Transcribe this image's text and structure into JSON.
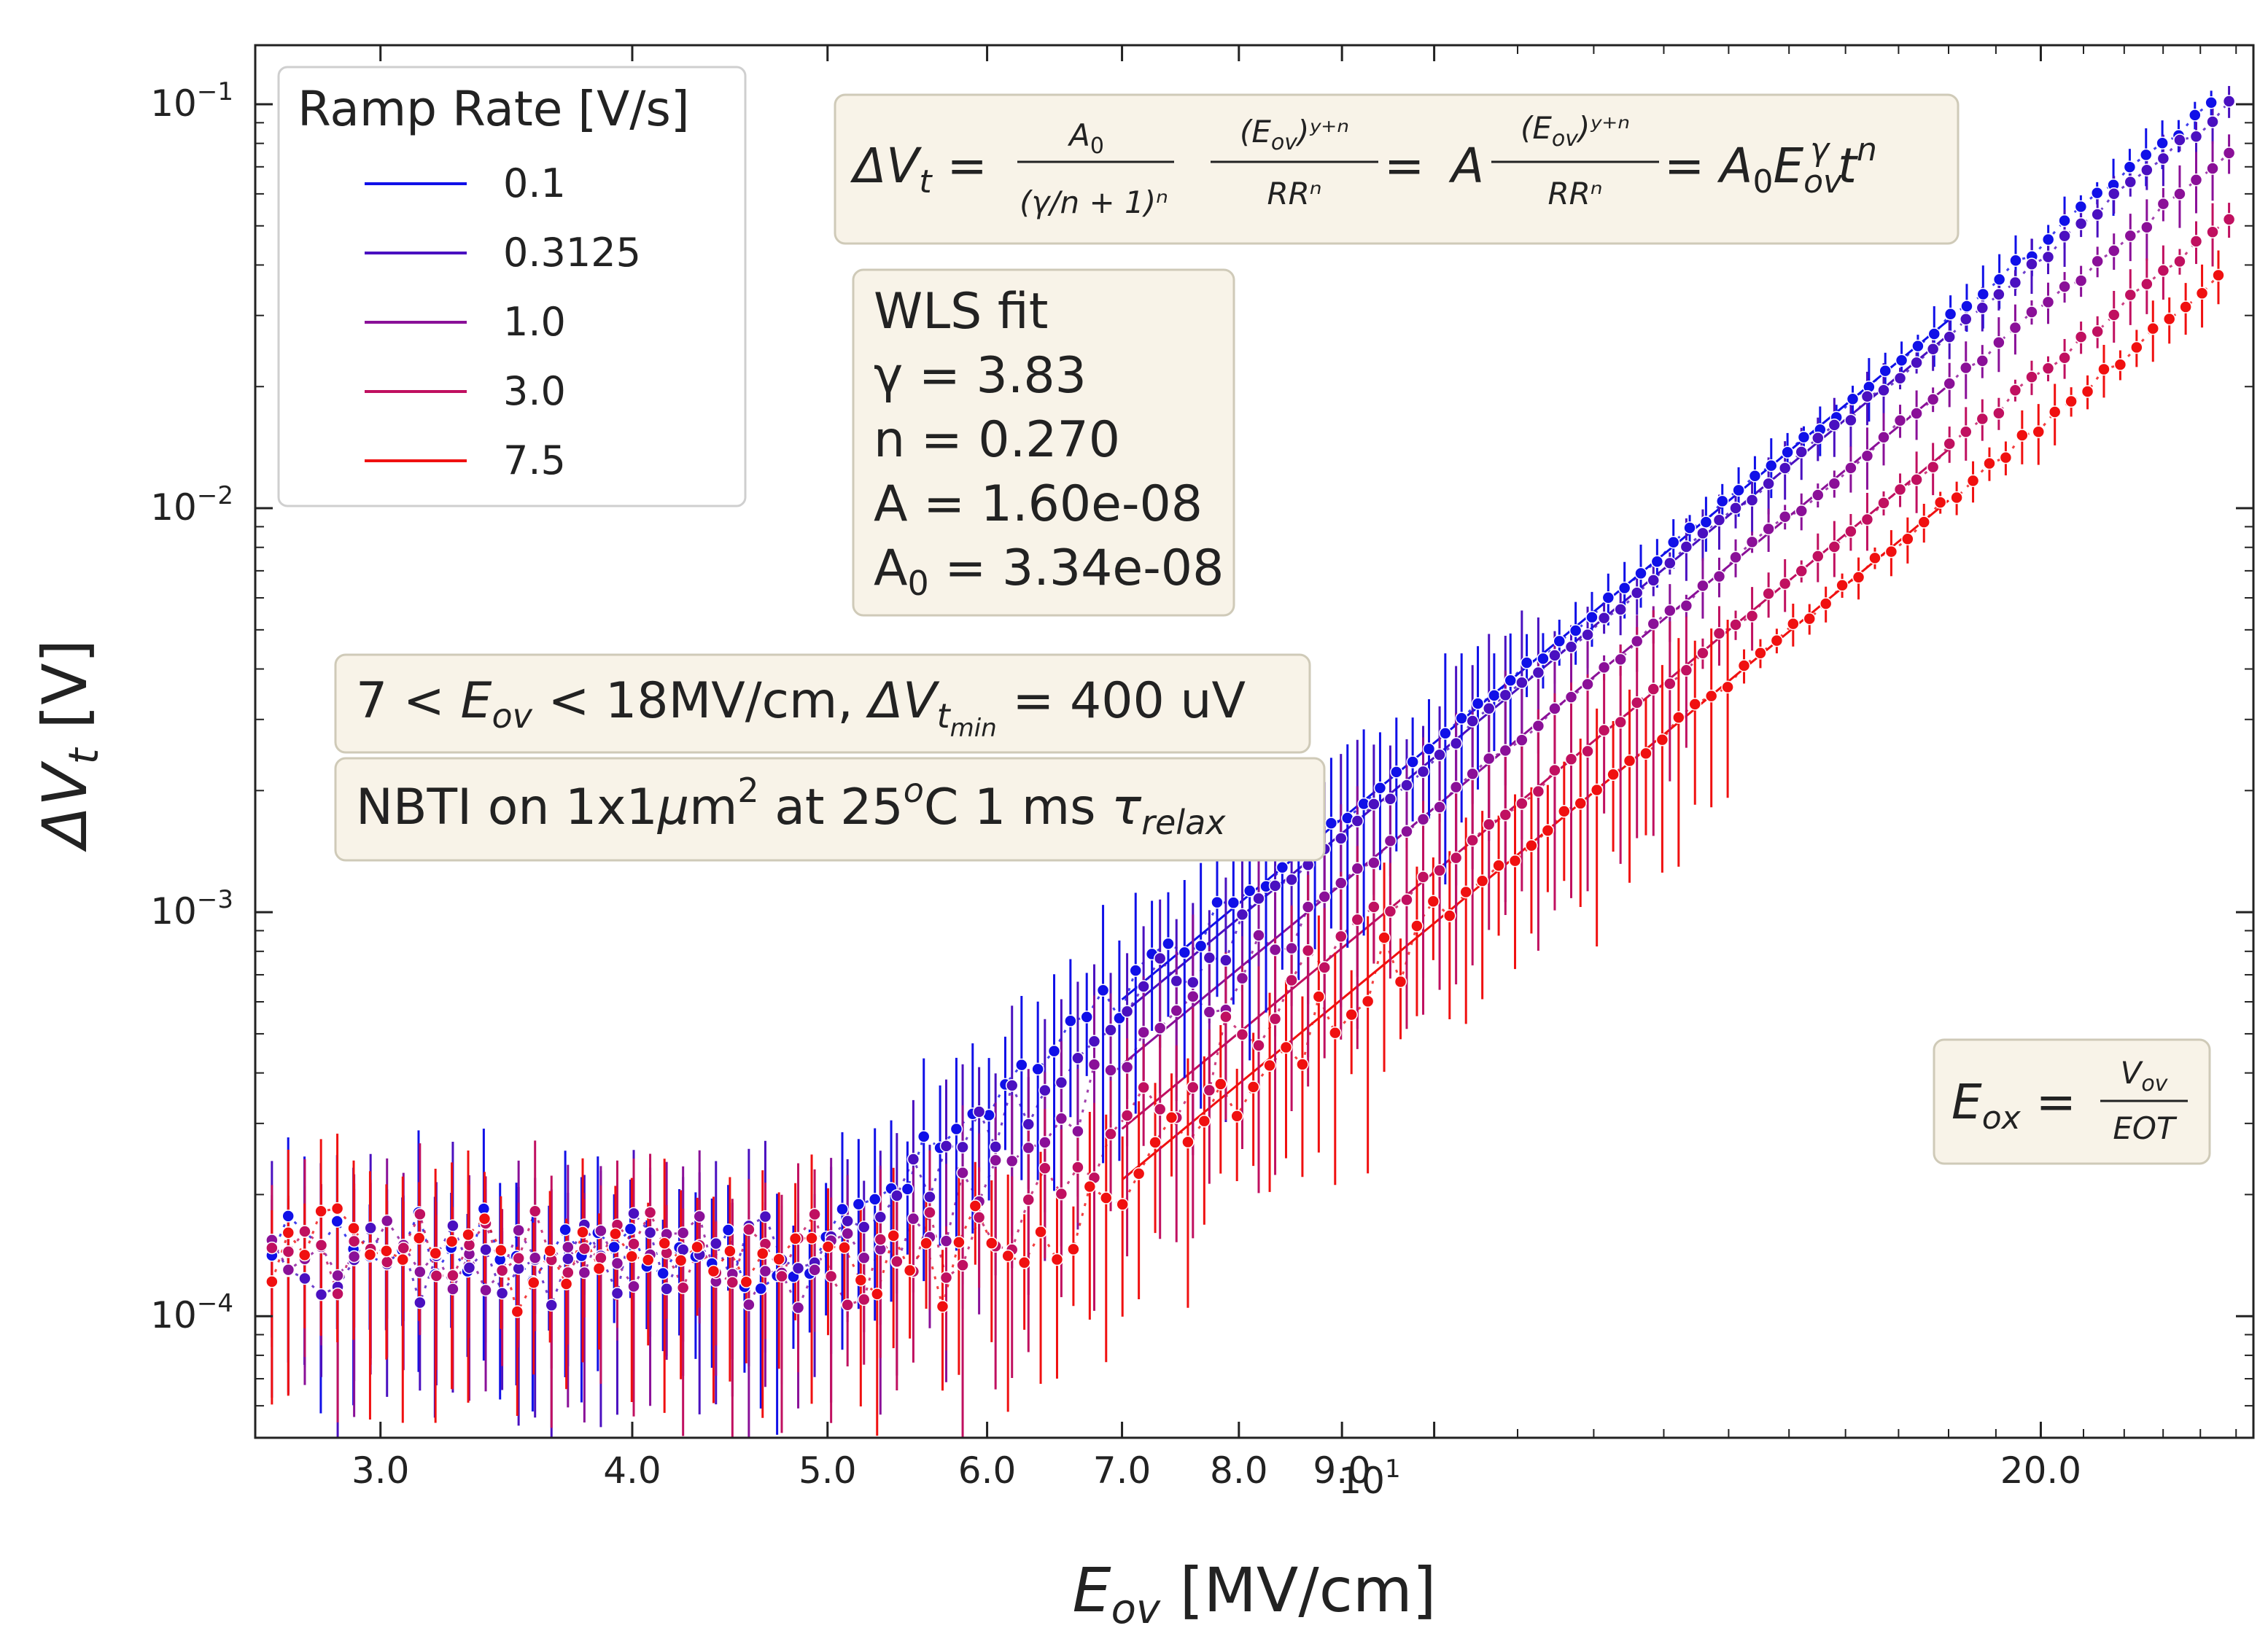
{
  "chart_data": {
    "type": "scatter",
    "xscale": "log",
    "yscale": "log",
    "xlim": [
      2.6,
      25.5
    ],
    "ylim": [
      5e-05,
      0.14
    ],
    "xlabel": "E_ov [MV/cm]",
    "ylabel": "ΔV_t [V]",
    "xlabel_parts": {
      "sym": "E",
      "sub": "ov",
      "unit": " [MV/cm]"
    },
    "ylabel_parts": {
      "sym": "ΔV",
      "sub": "t",
      "unit": " [V]"
    },
    "x_ticks": [
      {
        "value": 3.0,
        "label": "3.0"
      },
      {
        "value": 4.0,
        "label": "4.0"
      },
      {
        "value": 5.0,
        "label": "5.0"
      },
      {
        "value": 6.0,
        "label": "6.0"
      },
      {
        "value": 7.0,
        "label": "7.0"
      },
      {
        "value": 8.0,
        "label": "8.0"
      },
      {
        "value": 9.0,
        "label": "9.0"
      },
      {
        "value": 20.0,
        "label": "20.0"
      }
    ],
    "x_decade_tick": {
      "value": 10,
      "base": "10",
      "exp": "1"
    },
    "y_ticks": [
      {
        "value": 0.1,
        "base": "10",
        "exp": "−1"
      },
      {
        "value": 0.01,
        "base": "10",
        "exp": "−2"
      },
      {
        "value": 0.001,
        "base": "10",
        "exp": "−3"
      },
      {
        "value": 0.0001,
        "base": "10",
        "exp": "−4"
      }
    ],
    "legend": {
      "title": "Ramp Rate [V/s]",
      "position": "upper-left"
    },
    "fit_params": {
      "gamma": 3.83,
      "n": 0.27,
      "A": 1.6e-08,
      "A0": 3.34e-08
    },
    "fit_range": [
      7,
      18
    ],
    "noise_floor": 0.000145,
    "error_bar_frac": 0.45,
    "series": [
      {
        "name": "0.1",
        "color": "#1010e8",
        "ramp_rate": 0.1,
        "x_start": 2.65,
        "x_end": 24.3,
        "endpoint_dVt": 0.1
      },
      {
        "name": "0.3125",
        "color": "#4a10c0",
        "ramp_rate": 0.3125,
        "x_start": 2.65,
        "x_end": 24.8,
        "endpoint_dVt": 0.1
      },
      {
        "name": "1.0",
        "color": "#8a1098",
        "ramp_rate": 1.0,
        "x_start": 2.65,
        "x_end": 24.8,
        "endpoint_dVt": 0.075
      },
      {
        "name": "3.0",
        "color": "#c01060",
        "ramp_rate": 3.0,
        "x_start": 2.65,
        "x_end": 24.8,
        "endpoint_dVt": 0.052
      },
      {
        "name": "7.5",
        "color": "#f01010",
        "ramp_rate": 7.5,
        "x_start": 2.65,
        "x_end": 24.5,
        "endpoint_dVt": 0.037
      }
    ]
  },
  "annotations": {
    "formula": {
      "lhs": "ΔV",
      "lhs_sub": "t",
      "eq": " = ",
      "f1_num": "A",
      "f1_num_sub": "0",
      "f1_den": "(γ/n + 1)ⁿ",
      "f2_num": "(E",
      "f2_num_sub": "ov",
      "f2_num_tail": ")ʸ⁺ⁿ",
      "f2_den": "RRⁿ",
      "mid_A": "A",
      "rhs_A": "A",
      "rhs_A_sub": "0",
      "rhs_E": "E",
      "rhs_E_sub": "ov",
      "rhs_E_sup": "γ",
      "rhs_t": "t",
      "rhs_t_sup": "n"
    },
    "fit_box": {
      "title": "WLS fit",
      "gamma": "γ = 3.83",
      "n": "n = 0.270",
      "A": "A = 1.60e-08",
      "A0_pre": "A",
      "A0_sub": "0",
      "A0_post": " = 3.34e-08"
    },
    "range_box": {
      "pre": "7 < ",
      "e": "E",
      "e_sub": "ov",
      "mid": " < 18MV/cm, ",
      "dv": "ΔV",
      "dv_sub": "t",
      "dv_subsub": "min",
      "post": " = 400 uV"
    },
    "cond_box": {
      "pre": "NBTI on 1x1",
      "mu": "μ",
      "m": "m",
      "m_sup": "2",
      "mid": " at 25",
      "deg_sup": "o",
      "post": "C 1 ms ",
      "tau": "τ",
      "tau_sub": "relax"
    },
    "eox_box": {
      "lhs": "E",
      "lhs_sub": "ox",
      "eq": " = ",
      "num": "V",
      "num_sub": "ov",
      "den": "EOT"
    }
  },
  "colors": {
    "box_fill": "#f8f3e8",
    "box_stroke": "#cfcab8",
    "axis": "#222222"
  }
}
